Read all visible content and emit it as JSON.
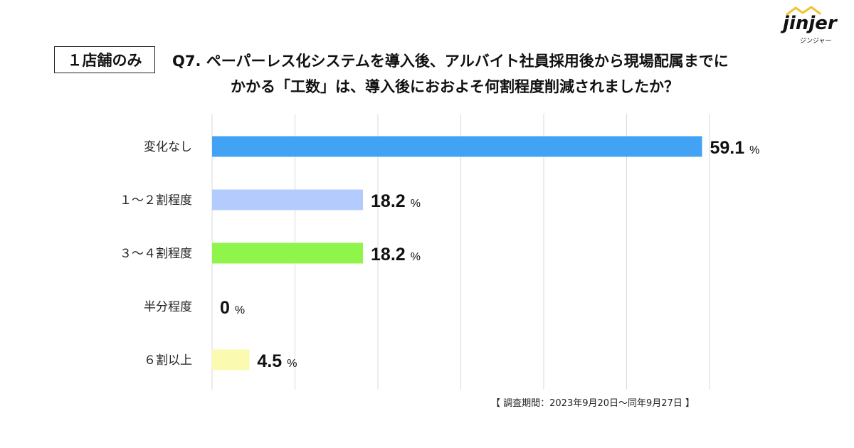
{
  "brand": {
    "logo_text": "jinjer",
    "logo_sub": "ジンジャー"
  },
  "header": {
    "scope_label": "１店舗のみ",
    "question_line1": "Q7. ペーパーレス化システムを導入後、アルバイト社員採用後から現場配属までに",
    "question_line2": "かかる「工数」は、導入後におおよそ何割程度削減されましたか？"
  },
  "footer": {
    "period": "【 調査期間：2023年9月20日～同年9月27日 】"
  },
  "chart_data": {
    "type": "bar",
    "orientation": "horizontal",
    "categories": [
      "変化なし",
      "１～２割程度",
      "３～４割程度",
      "半分程度",
      "６割以上"
    ],
    "values": [
      59.1,
      18.2,
      18.2,
      0,
      4.5
    ],
    "value_labels": [
      "59.1",
      "18.2",
      "18.2",
      "0",
      "4.5"
    ],
    "unit": "%",
    "colors": [
      "#42a3f4",
      "#b3ccfd",
      "#8ff54a",
      "#cccccc",
      "#fafab0"
    ],
    "xlim": [
      0,
      60
    ],
    "grid": true
  }
}
